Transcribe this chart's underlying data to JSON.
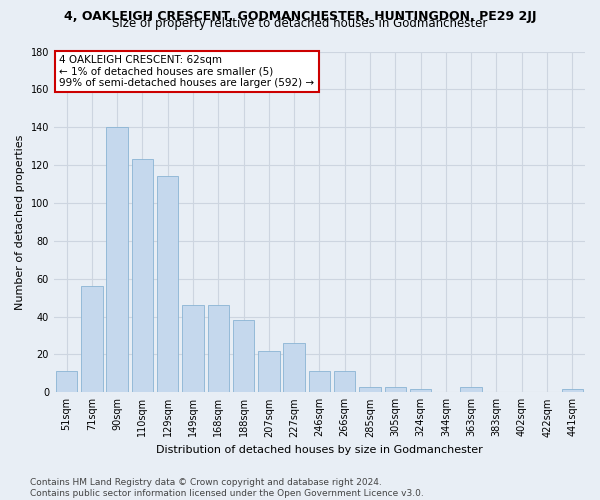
{
  "title": "4, OAKLEIGH CRESCENT, GODMANCHESTER, HUNTINGDON, PE29 2JJ",
  "subtitle": "Size of property relative to detached houses in Godmanchester",
  "xlabel": "Distribution of detached houses by size in Godmanchester",
  "ylabel": "Number of detached properties",
  "footnote": "Contains HM Land Registry data © Crown copyright and database right 2024.\nContains public sector information licensed under the Open Government Licence v3.0.",
  "categories": [
    "51sqm",
    "71sqm",
    "90sqm",
    "110sqm",
    "129sqm",
    "149sqm",
    "168sqm",
    "188sqm",
    "207sqm",
    "227sqm",
    "246sqm",
    "266sqm",
    "285sqm",
    "305sqm",
    "324sqm",
    "344sqm",
    "363sqm",
    "383sqm",
    "402sqm",
    "422sqm",
    "441sqm"
  ],
  "values": [
    11,
    56,
    140,
    123,
    114,
    46,
    46,
    38,
    22,
    26,
    11,
    11,
    3,
    3,
    2,
    0,
    3,
    0,
    0,
    0,
    2
  ],
  "bar_color": "#c5d8ed",
  "bar_edge_color": "#8ab4d4",
  "annotation_box_text": "4 OAKLEIGH CRESCENT: 62sqm\n← 1% of detached houses are smaller (5)\n99% of semi-detached houses are larger (592) →",
  "annotation_box_color": "#ffffff",
  "annotation_box_edge_color": "#cc0000",
  "ylim": [
    0,
    180
  ],
  "yticks": [
    0,
    20,
    40,
    60,
    80,
    100,
    120,
    140,
    160,
    180
  ],
  "grid_color": "#cdd5e0",
  "background_color": "#e8eef5",
  "title_fontsize": 9,
  "subtitle_fontsize": 8.5,
  "axis_label_fontsize": 8,
  "tick_fontsize": 7,
  "annotation_fontsize": 7.5,
  "footnote_fontsize": 6.5
}
